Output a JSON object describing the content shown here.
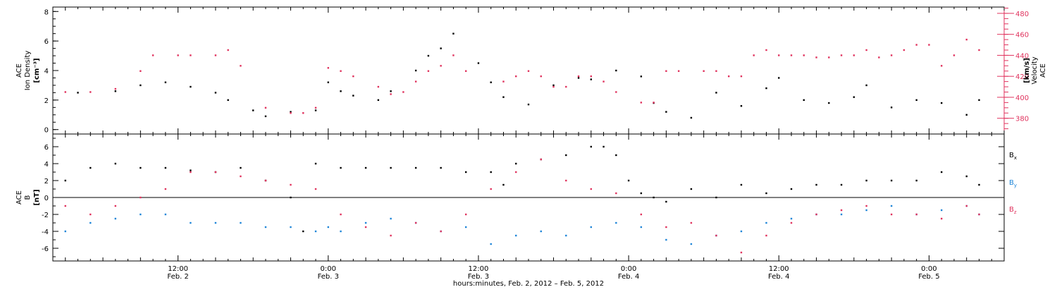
{
  "colors": {
    "black": "#000000",
    "pink": "#e0335e",
    "blue": "#1f86d8"
  },
  "xaxis": {
    "title": "hours:minutes, Feb.  2, 2012 – Feb.  5, 2012",
    "ticks": [
      {
        "time": "12:00",
        "date": "Feb. 2"
      },
      {
        "time": "0:00",
        "date": "Feb. 3"
      },
      {
        "time": "12:00",
        "date": "Feb. 3"
      },
      {
        "time": "0:00",
        "date": "Feb. 4"
      },
      {
        "time": "12:00",
        "date": "Feb. 4"
      },
      {
        "time": "0:00",
        "date": "Feb. 5"
      }
    ]
  },
  "chart_data": [
    {
      "type": "scatter",
      "panel": "top",
      "ylabel_left": [
        "ACE",
        "Ion Density",
        "[cm⁻³]"
      ],
      "ylabel_right": [
        "ACE",
        "Velocity",
        "[km/s]"
      ],
      "x_range_hours": [
        -22,
        54
      ],
      "ylim_left": [
        -0.3,
        8.3
      ],
      "ylim_right": [
        365,
        486
      ],
      "yticks_left": [
        "0",
        "2",
        "4",
        "6",
        "8"
      ],
      "yticks_right": [
        "380",
        "400",
        "420",
        "440",
        "460",
        "480"
      ],
      "series": [
        {
          "name": "Ion Density",
          "color": "#000000",
          "x": [
            -20,
            -17,
            -15,
            -13,
            -11,
            -9,
            -8,
            -6,
            -5,
            -3,
            -1,
            0,
            1,
            2,
            4,
            5,
            7,
            8,
            9,
            10,
            12,
            13,
            14,
            16,
            18,
            20,
            21,
            23,
            25,
            26,
            27,
            29,
            31,
            33,
            35,
            36,
            38,
            40,
            42,
            43,
            45,
            47,
            49,
            51,
            52
          ],
          "y": [
            2.5,
            2.6,
            3.0,
            3.2,
            2.9,
            2.5,
            2.0,
            1.3,
            0.9,
            1.2,
            1.3,
            3.2,
            2.6,
            2.3,
            2.0,
            2.6,
            4.0,
            5.0,
            5.5,
            6.5,
            4.5,
            3.2,
            2.2,
            1.7,
            3.0,
            3.5,
            3.4,
            4.0,
            3.6,
            1.8,
            1.2,
            0.8,
            2.5,
            1.6,
            2.8,
            3.5,
            2.0,
            1.8,
            2.2,
            3.0,
            1.5,
            2.0,
            1.8,
            1.0,
            2.0
          ]
        },
        {
          "name": "Velocity",
          "color": "#e0335e",
          "x": [
            -21,
            -19,
            -17,
            -15,
            -14,
            -12,
            -11,
            -9,
            -8,
            -7,
            -5,
            -3,
            -2,
            -1,
            0,
            1,
            2,
            4,
            5,
            6,
            7,
            8,
            9,
            10,
            11,
            14,
            15,
            16,
            17,
            18,
            19,
            20,
            21,
            22,
            23,
            25,
            26,
            27,
            28,
            30,
            31,
            32,
            33,
            34,
            35,
            36,
            37,
            38,
            39,
            40,
            41,
            42,
            43,
            44,
            45,
            46,
            47,
            48,
            49,
            50,
            51,
            52
          ],
          "y": [
            405,
            405,
            408,
            425,
            440,
            440,
            440,
            440,
            445,
            430,
            390,
            385,
            385,
            390,
            428,
            425,
            420,
            410,
            403,
            405,
            415,
            425,
            430,
            440,
            425,
            415,
            420,
            425,
            420,
            410,
            410,
            420,
            420,
            415,
            405,
            395,
            395,
            425,
            425,
            425,
            425,
            420,
            420,
            440,
            445,
            440,
            440,
            440,
            438,
            438,
            440,
            440,
            445,
            438,
            440,
            445,
            450,
            450,
            430,
            440,
            455,
            445
          ]
        }
      ]
    },
    {
      "type": "scatter",
      "panel": "bottom",
      "ylabel_left": [
        "ACE",
        "B",
        "[nT]"
      ],
      "x_range_hours": [
        -22,
        54
      ],
      "ylim": [
        -7.5,
        7.5
      ],
      "yticks": [
        "-6",
        "-4",
        "-2",
        "0",
        "2",
        "4",
        "6"
      ],
      "series": [
        {
          "name": "Bx",
          "color": "#000000",
          "x": [
            -21,
            -19,
            -17,
            -15,
            -13,
            -11,
            -9,
            -7,
            -5,
            -3,
            -2,
            -1,
            1,
            3,
            5,
            7,
            9,
            11,
            13,
            14,
            15,
            17,
            19,
            21,
            22,
            23,
            24,
            25,
            26,
            27,
            29,
            31,
            33,
            35,
            37,
            39,
            41,
            43,
            45,
            47,
            49,
            51,
            52
          ],
          "y": [
            2.0,
            3.5,
            4.0,
            3.5,
            3.5,
            3.2,
            3.0,
            3.5,
            2.0,
            0.0,
            -4.0,
            4.0,
            3.5,
            3.5,
            3.5,
            3.5,
            3.5,
            3.0,
            3.0,
            1.5,
            4.0,
            4.5,
            5.0,
            6.0,
            6.0,
            5.0,
            2.0,
            0.5,
            0.0,
            -0.5,
            1.0,
            0.0,
            1.5,
            0.5,
            1.0,
            1.5,
            1.5,
            2.0,
            2.0,
            2.0,
            3.0,
            2.5,
            1.5
          ]
        },
        {
          "name": "By",
          "color": "#1f86d8",
          "x": [
            -21,
            -19,
            -17,
            -15,
            -13,
            -11,
            -9,
            -7,
            -5,
            -3,
            -1,
            0,
            1,
            3,
            5,
            7,
            9,
            11,
            13,
            15,
            17,
            19,
            21,
            23,
            25,
            27,
            29,
            31,
            33,
            35,
            37,
            39,
            41,
            43,
            45,
            47,
            49,
            51,
            52
          ],
          "y": [
            -4.0,
            -3.0,
            -2.5,
            -2.0,
            -2.0,
            -3.0,
            -3.0,
            -3.0,
            -3.5,
            -3.5,
            -4.0,
            -3.5,
            -4.0,
            -3.0,
            -2.5,
            -3.0,
            -4.0,
            -3.5,
            -5.5,
            -4.5,
            -4.0,
            -4.5,
            -3.5,
            -3.0,
            -3.5,
            -5.0,
            -5.5,
            -4.5,
            -4.0,
            -3.0,
            -2.5,
            -2.0,
            -2.0,
            -1.5,
            -1.0,
            -2.0,
            -1.5,
            -1.0,
            -2.0
          ]
        },
        {
          "name": "Bz",
          "color": "#e0335e",
          "x": [
            -21,
            -19,
            -17,
            -15,
            -13,
            -11,
            -9,
            -7,
            -5,
            -3,
            -1,
            1,
            3,
            5,
            7,
            9,
            11,
            13,
            15,
            17,
            19,
            21,
            23,
            25,
            27,
            29,
            31,
            33,
            35,
            37,
            39,
            41,
            43,
            45,
            47,
            49,
            51,
            52
          ],
          "y": [
            -1.0,
            -2.0,
            -1.0,
            0.0,
            1.0,
            3.0,
            3.0,
            2.5,
            2.0,
            1.5,
            1.0,
            -2.0,
            -3.5,
            -4.5,
            -3.0,
            -4.0,
            -2.0,
            1.0,
            3.0,
            4.5,
            2.0,
            1.0,
            0.5,
            -2.0,
            -3.5,
            -3.0,
            -4.5,
            -6.5,
            -4.5,
            -3.0,
            -2.0,
            -1.5,
            -1.0,
            -2.0,
            -2.0,
            -2.5,
            -1.0,
            -2.0
          ]
        }
      ],
      "legend": [
        {
          "label": "B",
          "sub": "x",
          "color": "#000000"
        },
        {
          "label": "B",
          "sub": "y",
          "color": "#1f86d8"
        },
        {
          "label": "B",
          "sub": "z",
          "color": "#e0335e"
        }
      ]
    }
  ]
}
